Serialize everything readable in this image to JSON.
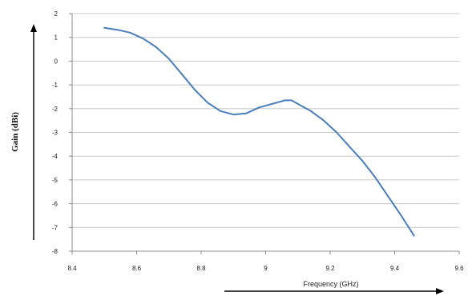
{
  "chart_data": {
    "type": "line",
    "xlabel": "Frequency (GHz)",
    "ylabel": "Gain (dBi)",
    "xlim": [
      8.4,
      9.6
    ],
    "ylim": [
      -8,
      2
    ],
    "x_ticks": [
      "8.4",
      "8.6",
      "8.8",
      "9",
      "9.2",
      "9.4",
      "9.6"
    ],
    "y_ticks": [
      "2",
      "1",
      "0",
      "-1",
      "-2",
      "-3",
      "-4",
      "-5",
      "-6",
      "-7",
      "-8"
    ],
    "grid": "horizontal",
    "series_color": "#4a7ebb",
    "series": [
      {
        "x": [
          8.5,
          8.54,
          8.58,
          8.62,
          8.66,
          8.7,
          8.74,
          8.78,
          8.82,
          8.86,
          8.9,
          8.94,
          8.98,
          9.02,
          9.06,
          9.08,
          9.1,
          9.14,
          9.18,
          9.22,
          9.26,
          9.3,
          9.34,
          9.38,
          9.42,
          9.46
        ],
        "y": [
          1.4,
          1.32,
          1.2,
          0.95,
          0.6,
          0.1,
          -0.55,
          -1.2,
          -1.75,
          -2.1,
          -2.25,
          -2.2,
          -1.95,
          -1.8,
          -1.65,
          -1.65,
          -1.8,
          -2.1,
          -2.5,
          -3.0,
          -3.6,
          -4.2,
          -4.9,
          -5.7,
          -6.5,
          -7.35
        ]
      }
    ]
  }
}
